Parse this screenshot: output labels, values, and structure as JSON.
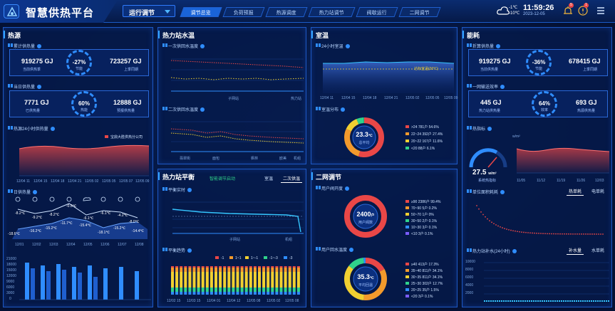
{
  "header": {
    "title": "智慧供热平台",
    "dropdown": "运行调节",
    "tabs": [
      "调节总览",
      "负荷预报",
      "热源调度",
      "热力站调节",
      "阀歇运行",
      "二网调节"
    ],
    "active_tab": 0,
    "temp_high": "-1℃",
    "temp_low": "-10℃",
    "time": "11:59:26",
    "date": "2023-12-05",
    "alert_badge": "5",
    "info_badge": "1",
    "colors": {
      "accent": "#2f8dff",
      "panel_border": "#1d58c5"
    }
  },
  "heat_source": {
    "title": "热源",
    "cum_label": "累计供热量",
    "cum_current": "919275 GJ",
    "cum_current_label": "当前供热季",
    "cum_prev": "723257 GJ",
    "cum_prev_label": "上季同期",
    "cum_pct": "-27%",
    "cum_pct_label": "节能",
    "today_label": "当日供热量",
    "today_supplied": "7771 GJ",
    "today_supplied_label": "已供热量",
    "today_forecast": "12888 GJ",
    "today_forecast_label": "预报供热量",
    "today_pct": "60%",
    "today_pct_label": "热能",
    "day24_label": "热源24小时供热量",
    "day24_legend": "宝鼎大胜供热分公司",
    "day24_x": [
      "12/04 11",
      "12/04 15",
      "12/04 18",
      "12/04 21",
      "12/05 02",
      "12/05 05",
      "12/05 07",
      "12/05 09"
    ],
    "day_label": "日供热量",
    "weather_temps": [
      "-8.2℃",
      "-9.2℃",
      "-8.2℃",
      "-0.5℃",
      "-6.1℃",
      "-6.1℃",
      "-4.2℃",
      "-8.0℃"
    ],
    "low_temps": [
      "-18.6℃",
      "-16.2℃",
      "-15.2℃",
      "-11.7℃",
      "-15.4℃",
      "-18.1℃",
      "-15.2℃",
      "-14.4℃"
    ],
    "day_x": [
      "12/01",
      "12/02",
      "12/03",
      "12/04",
      "12/05",
      "12/06",
      "12/07",
      "12/08"
    ],
    "bar_y": [
      "21000",
      "18000",
      "15000",
      "12000",
      "9000",
      "6000",
      "3000",
      "0"
    ]
  },
  "station_temp": {
    "title": "热力站水温",
    "sub1": "一次供回水温度",
    "sub1_xlabel": "子网站",
    "sub1_side": "热力站",
    "sub2": "二次供回水温度",
    "sub2_x": [
      "翡翠街",
      "面包",
      "枫林",
      "欧美"
    ],
    "sub2_side": "机组"
  },
  "station_balance": {
    "title": "热力站平衡",
    "status": "智能调节启动",
    "toggle": [
      "室温",
      "二次供温"
    ],
    "sub1": "平衡实时",
    "sub1_xlabel": "子网站",
    "sub1_side": "机组",
    "sub2": "平衡趋势",
    "legend": [
      "-1",
      "1~1",
      "1~-1",
      "-1~-3",
      "-3"
    ],
    "trend_x": [
      "12/02 15",
      "12/03 15",
      "12/04 01",
      "12/04 12",
      "12/05 08",
      "12/05 02",
      "12/05 08"
    ]
  },
  "room_temp": {
    "title": "室温",
    "sub1": "24小时室温",
    "target_label": "达标室温(20℃)",
    "x": [
      "12/04 11",
      "12/04 15",
      "12/04 18",
      "12/04 21",
      "12/05 02",
      "12/05 05",
      "12/05 09"
    ],
    "sub2": "室温分布",
    "avg": "23.3",
    "avg_unit": "℃",
    "avg_label": "总平均",
    "dist": [
      {
        "label": ">24",
        "val": "781户",
        "pct": "54.6%",
        "color": "#e94747"
      },
      {
        "label": "22~24",
        "val": "392户",
        "pct": "27.4%",
        "color": "#f39a2c"
      },
      {
        "label": "20~22",
        "val": "167户",
        "pct": "11.6%",
        "color": "#f1d031"
      },
      {
        "label": "<20",
        "val": "88户",
        "pct": "6.1%",
        "color": "#2fd28b"
      }
    ]
  },
  "secondary": {
    "title": "二网调节",
    "sub1": "用户阀开度",
    "valve_total": "2400",
    "valve_unit": "户",
    "valve_label": "用户阀数",
    "valve_dist": [
      {
        "label": "≥90",
        "val": "2386户",
        "pct": "99.4%",
        "color": "#e94747"
      },
      {
        "label": "70~90",
        "val": "5户",
        "pct": "0.2%",
        "color": "#f39a2c"
      },
      {
        "label": "50~70",
        "val": "1户",
        "pct": "0%",
        "color": "#f1d031"
      },
      {
        "label": "30~50",
        "val": "2户",
        "pct": "0.1%",
        "color": "#2fd28b"
      },
      {
        "label": "10~30",
        "val": "3户",
        "pct": "0.1%",
        "color": "#2f8dff"
      },
      {
        "label": "<10",
        "val": "3户",
        "pct": "0.1%",
        "color": "#7a5cff"
      }
    ],
    "sub2": "用户回水温度",
    "rt_avg": "35.3",
    "rt_unit": "℃",
    "rt_label": "平均回温",
    "rt_dist": [
      {
        "label": "≥40",
        "val": "413户",
        "pct": "17.3%",
        "color": "#e94747"
      },
      {
        "label": "35~40",
        "val": "811户",
        "pct": "34.1%",
        "color": "#f39a2c"
      },
      {
        "label": "30~35",
        "val": "811户",
        "pct": "34.1%",
        "color": "#f1d031"
      },
      {
        "label": "25~30",
        "val": "302户",
        "pct": "12.7%",
        "color": "#2fd28b"
      },
      {
        "label": "20~25",
        "val": "35户",
        "pct": "1.5%",
        "color": "#2f8dff"
      },
      {
        "label": "<20",
        "val": "3户",
        "pct": "0.1%",
        "color": "#7a5cff"
      }
    ]
  },
  "energy": {
    "title": "能耗",
    "sub1": "折算供热量",
    "conv_current": "919275 GJ",
    "conv_current_label": "当前供热量",
    "conv_prev": "678415 GJ",
    "conv_prev_label": "上季同期",
    "conv_pct": "-36%",
    "conv_pct_label": "节能",
    "sub2": "一网输送效率",
    "eff_current": "445 GJ",
    "eff_current_label": "热力站供热量",
    "eff_prev": "693 GJ",
    "eff_prev_label": "热源供热量",
    "eff_pct": "64%",
    "eff_pct_label": "效率",
    "sub3": "热指标",
    "gauge_val": "27.5",
    "gauge_unit": "w/m²",
    "gauge_label": "系统热指标",
    "idx_unit": "w/m²",
    "idx_x": [
      "11/05",
      "11/12",
      "11/19",
      "11/26",
      "12/03"
    ],
    "sub4": "单位面积耗耗",
    "btns4": [
      "热单耗",
      "电单耗"
    ],
    "sub5": "热力站补水(24小时)",
    "btns5": [
      "补水量",
      "水单耗"
    ],
    "y5": [
      "10000",
      "8000",
      "6000",
      "4000",
      "2000"
    ]
  }
}
